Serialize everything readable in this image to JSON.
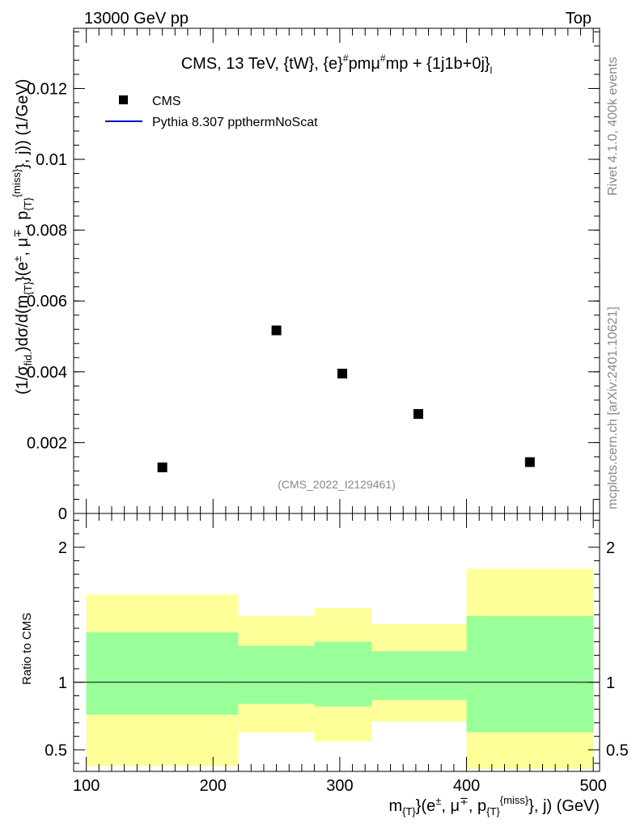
{
  "header": {
    "left_label": "13000 GeV pp",
    "right_label": "Top"
  },
  "side_labels": {
    "rivet": "Rivet 4.1.0,  400k events",
    "mcplots": "mcplots.cern.ch [arXiv:2401.10621]"
  },
  "chart_data": [
    {
      "type": "scatter",
      "title": "CMS, 13 TeV, {tW}, {e}#pmμ#mp + {1j1b+0j}_l",
      "ylabel": "(1/σ_fid.)dσ/d(m_{T}(e±, μ∓, p_T^miss, j)) (1/GeV)",
      "xlim": [
        90,
        505
      ],
      "ylim": [
        0,
        0.0137
      ],
      "yticks": [
        0,
        0.002,
        0.004,
        0.006,
        0.008,
        0.01,
        0.012
      ],
      "ytick_labels": [
        "0",
        "0.002",
        "0.004",
        "0.006",
        "0.008",
        "0.01",
        "0.012"
      ],
      "legend": [
        "CMS",
        "Pythia 8.307 ppthermNoScat"
      ],
      "legend_position": "top-left",
      "watermark": "(CMS_2022_I2129461)",
      "series": [
        {
          "name": "CMS",
          "marker": "square",
          "x": [
            160,
            250,
            302,
            362,
            450
          ],
          "y": [
            0.0013,
            0.00517,
            0.00395,
            0.00281,
            0.00145
          ]
        }
      ]
    },
    {
      "type": "area",
      "ylabel": "Ratio to CMS",
      "xlabel": "m_{T}(e±, μ∓, p_T^{miss}, j) (GeV)",
      "xlim": [
        90,
        505
      ],
      "ylim": [
        0.34,
        2.25
      ],
      "yticks": [
        0.5,
        1,
        2
      ],
      "ytick_labels": [
        "0.5",
        "1",
        "2"
      ],
      "xticks": [
        100,
        200,
        300,
        400,
        500
      ],
      "xtick_labels": [
        "100",
        "200",
        "300",
        "400",
        "500"
      ],
      "reference_line": 1,
      "bins": [
        {
          "lo": 100,
          "hi": 220,
          "inner": [
            0.76,
            1.37
          ],
          "outer": [
            0.38,
            1.65
          ]
        },
        {
          "lo": 220,
          "hi": 280,
          "inner": [
            0.84,
            1.27
          ],
          "outer": [
            0.63,
            1.49
          ]
        },
        {
          "lo": 280,
          "hi": 325,
          "inner": [
            0.82,
            1.3
          ],
          "outer": [
            0.56,
            1.55
          ]
        },
        {
          "lo": 325,
          "hi": 400,
          "inner": [
            0.87,
            1.23
          ],
          "outer": [
            0.71,
            1.43
          ]
        },
        {
          "lo": 400,
          "hi": 500,
          "inner": [
            0.63,
            1.49
          ],
          "outer": [
            0.36,
            1.84
          ]
        }
      ],
      "colors": {
        "inner": "#99ff99",
        "outer": "#ffff99"
      }
    }
  ]
}
